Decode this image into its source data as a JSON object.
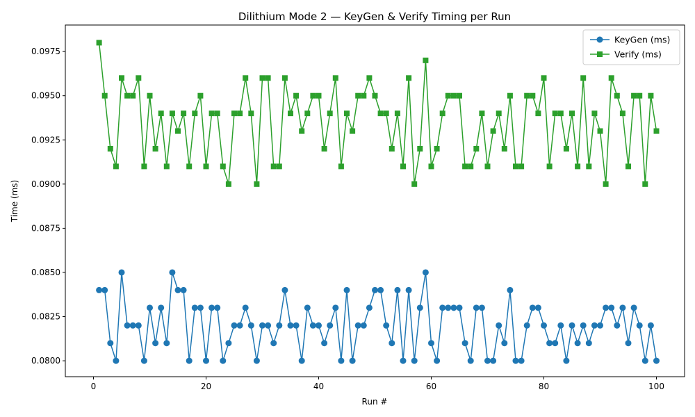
{
  "chart_data": {
    "type": "line",
    "title": "Dilithium Mode 2 — KeyGen & Verify Timing per Run",
    "xlabel": "Run #",
    "ylabel": "Time (ms)",
    "xlim": [
      -5,
      105
    ],
    "ylim": [
      0.0791,
      0.099
    ],
    "xticks": [
      0,
      20,
      40,
      60,
      80,
      100
    ],
    "yticks": [
      0.08,
      0.0825,
      0.085,
      0.0875,
      0.09,
      0.0925,
      0.095,
      0.0975
    ],
    "ytick_labels": [
      "0.0800",
      "0.0825",
      "0.0850",
      "0.0875",
      "0.0900",
      "0.0925",
      "0.0950",
      "0.0975"
    ],
    "grid": false,
    "legend": "upper right",
    "x": [
      1,
      2,
      3,
      4,
      5,
      6,
      7,
      8,
      9,
      10,
      11,
      12,
      13,
      14,
      15,
      16,
      17,
      18,
      19,
      20,
      21,
      22,
      23,
      24,
      25,
      26,
      27,
      28,
      29,
      30,
      31,
      32,
      33,
      34,
      35,
      36,
      37,
      38,
      39,
      40,
      41,
      42,
      43,
      44,
      45,
      46,
      47,
      48,
      49,
      50,
      51,
      52,
      53,
      54,
      55,
      56,
      57,
      58,
      59,
      60,
      61,
      62,
      63,
      64,
      65,
      66,
      67,
      68,
      69,
      70,
      71,
      72,
      73,
      74,
      75,
      76,
      77,
      78,
      79,
      80,
      81,
      82,
      83,
      84,
      85,
      86,
      87,
      88,
      89,
      90,
      91,
      92,
      93,
      94,
      95,
      96,
      97,
      98,
      99,
      100
    ],
    "series": [
      {
        "name": "KeyGen (ms)",
        "color": "#1f77b4",
        "marker": "circle",
        "values": [
          0.084,
          0.084,
          0.081,
          0.08,
          0.085,
          0.082,
          0.082,
          0.082,
          0.08,
          0.083,
          0.081,
          0.083,
          0.081,
          0.085,
          0.084,
          0.084,
          0.08,
          0.083,
          0.083,
          0.08,
          0.083,
          0.083,
          0.08,
          0.081,
          0.082,
          0.082,
          0.083,
          0.082,
          0.08,
          0.082,
          0.082,
          0.081,
          0.082,
          0.084,
          0.082,
          0.082,
          0.08,
          0.083,
          0.082,
          0.082,
          0.081,
          0.082,
          0.083,
          0.08,
          0.084,
          0.08,
          0.082,
          0.082,
          0.083,
          0.084,
          0.084,
          0.082,
          0.081,
          0.084,
          0.08,
          0.084,
          0.08,
          0.083,
          0.085,
          0.081,
          0.08,
          0.083,
          0.083,
          0.083,
          0.083,
          0.081,
          0.08,
          0.083,
          0.083,
          0.08,
          0.08,
          0.082,
          0.081,
          0.084,
          0.08,
          0.08,
          0.082,
          0.083,
          0.083,
          0.082,
          0.081,
          0.081,
          0.082,
          0.08,
          0.082,
          0.081,
          0.082,
          0.081,
          0.082,
          0.082,
          0.083,
          0.083,
          0.082,
          0.083,
          0.081,
          0.083,
          0.082,
          0.08,
          0.082,
          0.08
        ]
      },
      {
        "name": "Verify (ms)",
        "color": "#2ca02c",
        "marker": "square",
        "values": [
          0.098,
          0.095,
          0.092,
          0.091,
          0.096,
          0.095,
          0.095,
          0.096,
          0.091,
          0.095,
          0.092,
          0.094,
          0.091,
          0.094,
          0.093,
          0.094,
          0.091,
          0.094,
          0.095,
          0.091,
          0.094,
          0.094,
          0.091,
          0.09,
          0.094,
          0.094,
          0.096,
          0.094,
          0.09,
          0.096,
          0.096,
          0.091,
          0.091,
          0.096,
          0.094,
          0.095,
          0.093,
          0.094,
          0.095,
          0.095,
          0.092,
          0.094,
          0.096,
          0.091,
          0.094,
          0.093,
          0.095,
          0.095,
          0.096,
          0.095,
          0.094,
          0.094,
          0.092,
          0.094,
          0.091,
          0.096,
          0.09,
          0.092,
          0.097,
          0.091,
          0.092,
          0.094,
          0.095,
          0.095,
          0.095,
          0.091,
          0.091,
          0.092,
          0.094,
          0.091,
          0.093,
          0.094,
          0.092,
          0.095,
          0.091,
          0.091,
          0.095,
          0.095,
          0.094,
          0.096,
          0.091,
          0.094,
          0.094,
          0.092,
          0.094,
          0.091,
          0.096,
          0.091,
          0.094,
          0.093,
          0.09,
          0.096,
          0.095,
          0.094,
          0.091,
          0.095,
          0.095,
          0.09,
          0.095,
          0.093
        ]
      }
    ]
  }
}
